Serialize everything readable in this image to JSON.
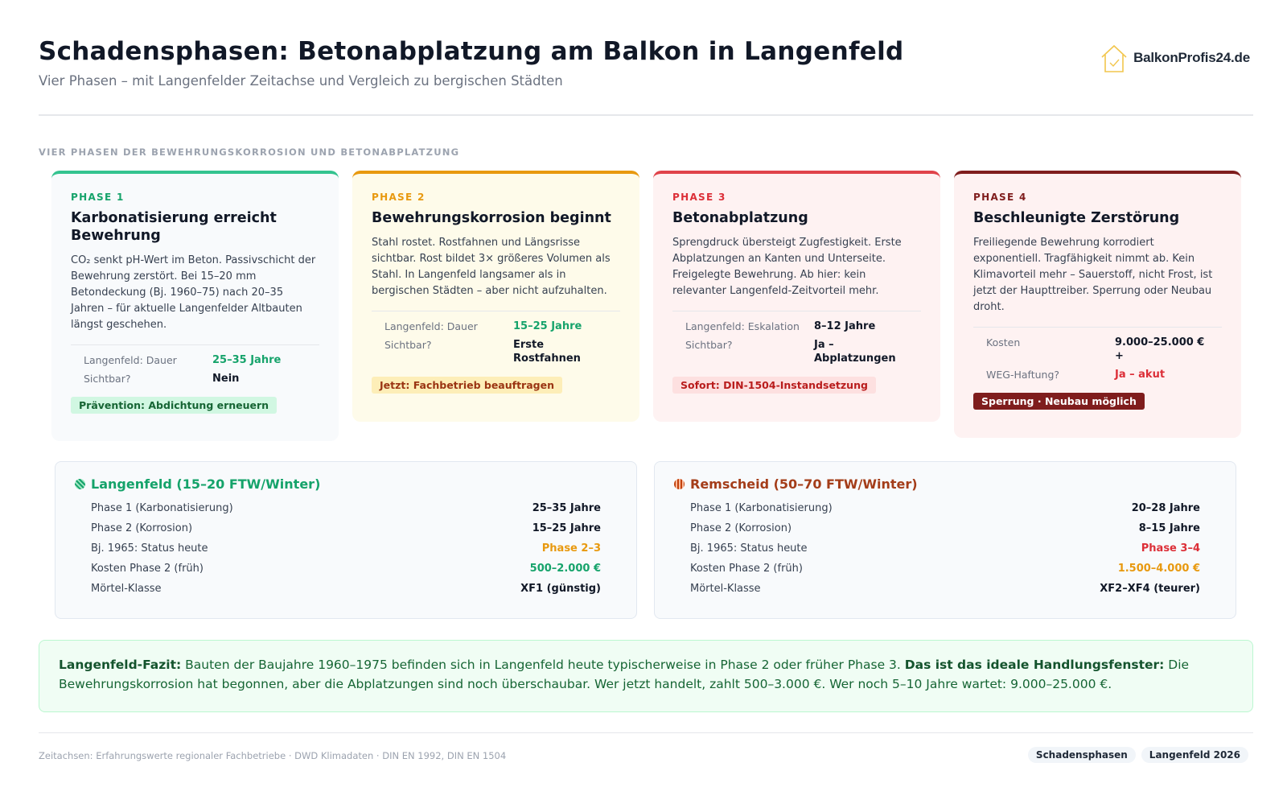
{
  "header": {
    "title": "Schadensphasen: Betonabplatzung am Balkon in Langenfeld",
    "subtitle": "Vier Phasen – mit Langenfelder Zeitachse und Vergleich zu bergischen Städten",
    "logo_text": "BalkonProfis24.de",
    "logo_icon": "house-check-icon"
  },
  "section_label": "VIER PHASEN DER BEWEHRUNGSKORROSION UND BETONABPLATZUNG",
  "phases": [
    {
      "label": "PHASE 1",
      "title": "Karbonatisierung erreicht Bewehrung",
      "description": "CO₂ senkt pH-Wert im Beton. Passivschicht der Bewehrung zerstört. Bei 15–20 mm Betondeckung (Bj. 1960–75) nach 20–35 Jahren – für aktuelle Langenfelder Altbauten längst geschehen.",
      "rows": [
        {
          "key": "Langenfeld: Dauer",
          "value": "25–35 Jahre"
        },
        {
          "key": "Sichtbar?",
          "value": "Nein"
        }
      ],
      "tag": "Prävention: Abdichtung erneuern",
      "color": "#34c38f"
    },
    {
      "label": "PHASE 2",
      "title": "Bewehrungskorrosion beginnt",
      "description": "Stahl rostet. Rostfahnen und Längsrisse sichtbar. Rost bildet 3× größeres Volumen als Stahl. In Langenfeld langsamer als in bergischen Städten – aber nicht aufzuhalten.",
      "rows": [
        {
          "key": "Langenfeld: Dauer",
          "value": "15–25 Jahre"
        },
        {
          "key": "Sichtbar?",
          "value": "Erste Rostfahnen"
        }
      ],
      "tag": "Jetzt: Fachbetrieb beauftragen",
      "color": "#e8990f"
    },
    {
      "label": "PHASE 3",
      "title": "Betonabplatzung",
      "description": "Sprengdruck übersteigt Zugfestigkeit. Erste Abplatzungen an Kanten und Unterseite. Freigelegte Bewehrung. Ab hier: kein relevanter Langenfeld-Zeitvorteil mehr.",
      "rows": [
        {
          "key": "Langenfeld: Eskalation",
          "value": "8–12 Jahre"
        },
        {
          "key": "Sichtbar?",
          "value": "Ja – Abplatzungen"
        }
      ],
      "tag": "Sofort: DIN-1504-Instandsetzung",
      "color": "#e0434a"
    },
    {
      "label": "PHASE 4",
      "title": "Beschleunigte Zerstörung",
      "description": "Freiliegende Bewehrung korrodiert exponentiell. Tragfähigkeit nimmt ab. Kein Klimavorteil mehr – Sauerstoff, nicht Frost, ist jetzt der Haupttreiber. Sperrung oder Neubau droht.",
      "rows": [
        {
          "key": "Kosten",
          "value": "9.000–25.000 € +"
        },
        {
          "key": "WEG-Haftung?",
          "value": "Ja – akut"
        }
      ],
      "tag": "Sperrung · Neubau möglich",
      "color": "#7f1d1d"
    }
  ],
  "comparison": {
    "langenfeld": {
      "title": "Langenfeld (15–20 FTW/Winter)",
      "rows": [
        {
          "key": "Phase 1 (Karbonatisierung)",
          "value": "25–35 Jahre"
        },
        {
          "key": "Phase 2 (Korrosion)",
          "value": "15–25 Jahre"
        },
        {
          "key": "Bj. 1965: Status heute",
          "value": "Phase 2–3"
        },
        {
          "key": "Kosten Phase 2 (früh)",
          "value": "500–2.000 €"
        },
        {
          "key": "Mörtel-Klasse",
          "value": "XF1 (günstig)"
        }
      ]
    },
    "remscheid": {
      "title": "Remscheid (50–70 FTW/Winter)",
      "rows": [
        {
          "key": "Phase 1 (Karbonatisierung)",
          "value": "20–28 Jahre"
        },
        {
          "key": "Phase 2 (Korrosion)",
          "value": "8–15 Jahre"
        },
        {
          "key": "Bj. 1965: Status heute",
          "value": "Phase 3–4"
        },
        {
          "key": "Kosten Phase 2 (früh)",
          "value": "1.500–4.000 €"
        },
        {
          "key": "Mörtel-Klasse",
          "value": "XF2–XF4 (teurer)"
        }
      ]
    }
  },
  "fazit": {
    "lead": "Langenfeld-Fazit:",
    "text1": " Bauten der Baujahre 1960–1975 befinden sich in Langenfeld heute typischerweise in Phase 2 oder früher Phase 3. ",
    "emphasis": "Das ist das ideale Handlungsfenster:",
    "text2": " Die Bewehrungskorrosion hat begonnen, aber die Abplatzungen sind noch überschaubar. Wer jetzt handelt, zahlt 500–3.000 €. Wer noch 5–10 Jahre wartet: 9.000–25.000 €."
  },
  "footer": {
    "source": "Zeitachsen: Erfahrungswerte regionaler Fachbetriebe · DWD Klimadaten · DIN EN 1992, DIN EN 1504",
    "tags": [
      "Schadensphasen",
      "Langenfeld 2026"
    ]
  }
}
